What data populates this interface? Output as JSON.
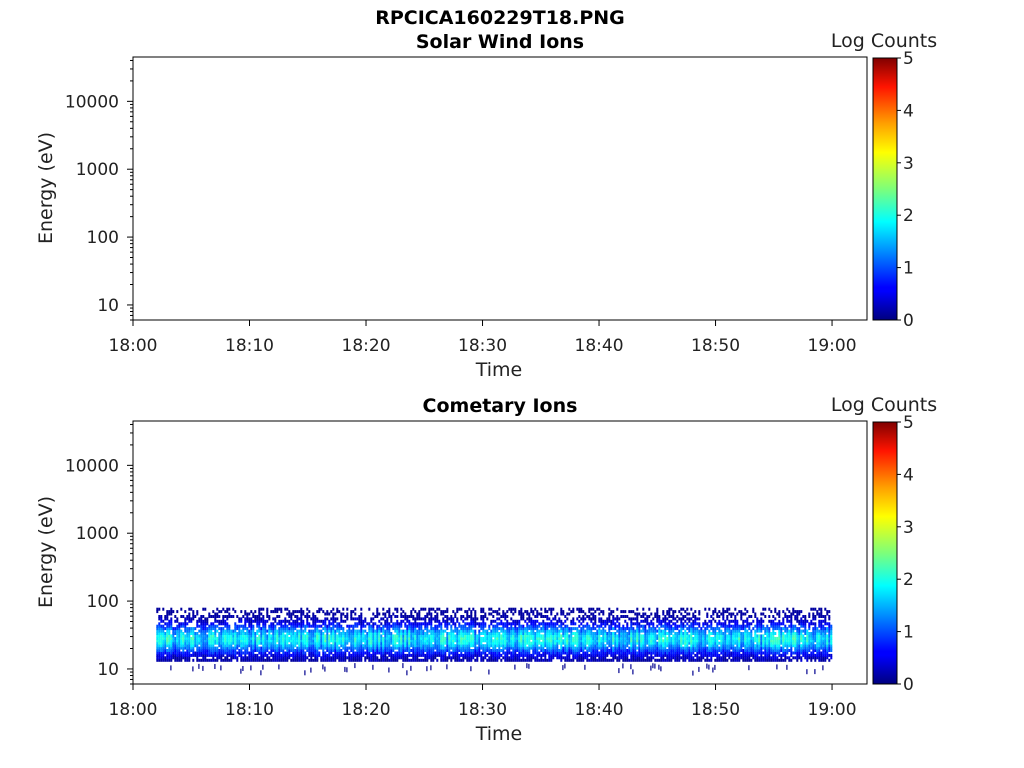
{
  "figure_title": "RPCICA160229T18.PNG",
  "chart_data": [
    {
      "type": "heatmap",
      "title": "Solar Wind Ions",
      "xlabel": "Time",
      "ylabel": "Energy (eV)",
      "x_ticks": [
        "18:00",
        "18:10",
        "18:20",
        "18:30",
        "18:40",
        "18:50",
        "19:00"
      ],
      "x_range": [
        "18:00",
        "19:03"
      ],
      "y_scale": "log",
      "y_ticks": [
        "10",
        "100",
        "1000",
        "10000"
      ],
      "y_range": [
        6,
        45000
      ],
      "colorbar": {
        "label": "Log Counts",
        "ticks": [
          "0",
          "1",
          "2",
          "3",
          "4",
          "5"
        ],
        "range": [
          0,
          5
        ],
        "colormap": "jet"
      },
      "data": {
        "present": false
      }
    },
    {
      "type": "heatmap",
      "title": "Cometary Ions",
      "xlabel": "Time",
      "ylabel": "Energy (eV)",
      "x_ticks": [
        "18:00",
        "18:10",
        "18:20",
        "18:30",
        "18:40",
        "18:50",
        "19:00"
      ],
      "x_range": [
        "18:00",
        "19:03"
      ],
      "y_scale": "log",
      "y_ticks": [
        "10",
        "100",
        "1000",
        "10000"
      ],
      "y_range": [
        6,
        45000
      ],
      "colorbar": {
        "label": "Log Counts",
        "ticks": [
          "0",
          "1",
          "2",
          "3",
          "4",
          "5"
        ],
        "range": [
          0,
          5
        ],
        "colormap": "jet"
      },
      "data": {
        "present": true,
        "time_start": "18:02",
        "time_end": "19:00",
        "energy_min": 13,
        "energy_max": 80,
        "peak_energy": 28,
        "peak_log_counts": 1.8,
        "typical_log_counts": 0.8
      }
    }
  ]
}
